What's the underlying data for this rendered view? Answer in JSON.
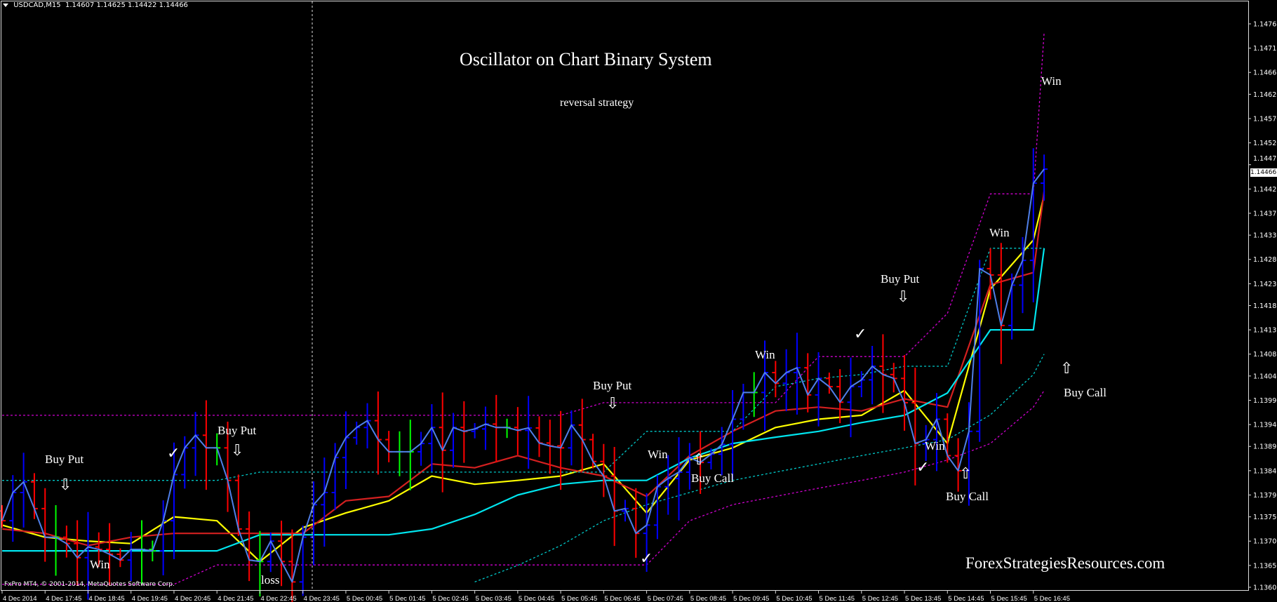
{
  "header": {
    "symbol": "USDCAD,M15",
    "ohlc": "1.14607 1.14625 1.14422 1.14466"
  },
  "title": "Oscillator on Chart Binary System",
  "subtitle": "reversal strategy",
  "watermark": "ForexStrategiesResources.com",
  "copyright": "FxPro MT4, © 2001-2014, MetaQuotes Software Corp.",
  "current_price": "1.14466",
  "annotations": [
    {
      "text": "Buy Put",
      "icon": "arrow-down-icon"
    },
    {
      "text": "Win"
    },
    {
      "text": "Buy Put",
      "icon": "arrow-down-icon"
    },
    {
      "text": "loss"
    },
    {
      "text": "Buy Put",
      "icon": "arrow-down-icon"
    },
    {
      "text": "Win"
    },
    {
      "text": "Buy Call",
      "icon": "arrow-up-icon"
    },
    {
      "text": "Win"
    },
    {
      "text": "Buy Put",
      "icon": "arrow-down-icon"
    },
    {
      "text": "Win"
    },
    {
      "text": "Buy Call",
      "icon": "arrow-up-icon"
    },
    {
      "text": "Win"
    },
    {
      "text": "Buy Call",
      "icon": "arrow-up-icon"
    },
    {
      "text": "Win"
    }
  ],
  "glyphs": {
    "check": "✓",
    "down": "⇩",
    "up": "⇧"
  },
  "chart_data": {
    "type": "ohlc",
    "symbol": "USDCAD",
    "timeframe": "M15",
    "start_time": "4 Dec 2014 16:45",
    "grid": false,
    "background": "#000000",
    "colors": {
      "bull": "#0000ff",
      "bear": "#ff0000",
      "doji": "#00ff00",
      "close_line": "#4f7fe8"
    },
    "ylim": [
      1.1359,
      1.1479
    ],
    "y_ticks": [
      "1.14765",
      "1.14715",
      "1.14665",
      "1.14620",
      "1.14570",
      "1.14520",
      "1.14475",
      "1.14425",
      "1.14375",
      "1.14330",
      "1.14280",
      "1.14230",
      "1.14185",
      "1.14135",
      "1.14085",
      "1.14040",
      "1.13990",
      "1.13940",
      "1.13895",
      "1.13845",
      "1.13795",
      "1.13750",
      "1.13700",
      "1.13650",
      "1.13605"
    ],
    "x_ticks": [
      "4 Dec 2014",
      "4 Dec 17:45",
      "4 Dec 18:45",
      "4 Dec 19:45",
      "4 Dec 20:45",
      "4 Dec 21:45",
      "4 Dec 22:45",
      "4 Dec 23:45",
      "5 Dec 00:45",
      "5 Dec 01:45",
      "5 Dec 02:45",
      "5 Dec 03:45",
      "5 Dec 04:45",
      "5 Dec 05:45",
      "5 Dec 06:45",
      "5 Dec 07:45",
      "5 Dec 08:45",
      "5 Dec 09:45",
      "5 Dec 10:45",
      "5 Dec 11:45",
      "5 Dec 12:45",
      "5 Dec 13:45",
      "5 Dec 14:45",
      "5 Dec 15:45",
      "5 Dec 16:45"
    ],
    "close": [
      1.13742,
      1.138,
      1.13822,
      1.13767,
      1.13708,
      1.13708,
      1.13695,
      1.13666,
      1.13688,
      1.13683,
      1.13673,
      1.13661,
      1.13683,
      1.13683,
      1.1368,
      1.13742,
      1.13837,
      1.13892,
      1.13918,
      1.13892,
      1.13892,
      1.13825,
      1.13725,
      1.13661,
      1.13658,
      1.137,
      1.13658,
      1.13616,
      1.13708,
      1.13775,
      1.138,
      1.13872,
      1.13913,
      1.13934,
      1.13948,
      1.13909,
      1.13884,
      1.13884,
      1.13884,
      1.13901,
      1.13934,
      1.13887,
      1.13934,
      1.13926,
      1.13931,
      1.13941,
      1.13934,
      1.13934,
      1.13928,
      1.13933,
      1.13902,
      1.13896,
      1.13892,
      1.13939,
      1.13909,
      1.13864,
      1.13834,
      1.13762,
      1.13767,
      1.13716,
      1.13733,
      1.13812,
      1.13829,
      1.13842,
      1.13872,
      1.13862,
      1.13879,
      1.13899,
      1.13951,
      1.14006,
      1.14006,
      1.14047,
      1.14025,
      1.14047,
      1.14057,
      1.14001,
      1.14035,
      1.14018,
      1.13986,
      1.14018,
      1.14032,
      1.1406,
      1.14043,
      1.14035,
      1.13985,
      1.13901,
      1.13909,
      1.13951,
      1.13876,
      1.13845,
      1.13926,
      1.14261,
      1.14248,
      1.14144,
      1.14227,
      1.14278,
      1.14437,
      1.14466
    ],
    "indicators": [
      {
        "color": "#ffff00",
        "style": "solid",
        "hourly": [
          1.13733,
          1.13708,
          1.137,
          1.13695,
          1.1375,
          1.13742,
          1.13658,
          1.13728,
          1.13758,
          1.13783,
          1.13834,
          1.13817,
          1.13825,
          1.13834,
          1.13859,
          1.13758,
          1.13867,
          1.13892,
          1.13934,
          1.13951,
          1.13959,
          1.1401,
          1.13901,
          1.14219,
          1.1432
        ],
        "last": 1.14412
      },
      {
        "color": "#d42020",
        "style": "solid",
        "hourly": [
          1.13725,
          1.13716,
          1.13691,
          1.13708,
          1.13716,
          1.13716,
          1.13716,
          1.13716,
          1.13783,
          1.13792,
          1.13859,
          1.13851,
          1.13876,
          1.13851,
          1.13834,
          1.13792,
          1.13876,
          1.13926,
          1.13968,
          1.13976,
          1.13968,
          1.13993,
          1.13976,
          1.14228,
          1.14253
        ],
        "last": 1.1442
      },
      {
        "color": "#00e5ee",
        "style": "solid",
        "hourly": [
          1.1368,
          1.1368,
          1.1368,
          1.1368,
          1.1368,
          1.1368,
          1.13713,
          1.13713,
          1.13713,
          1.13713,
          1.13725,
          1.13755,
          1.13795,
          1.13817,
          1.13825,
          1.13825,
          1.13871,
          1.13901,
          1.13914,
          1.13926,
          1.13944,
          1.13959,
          1.14005,
          1.14135,
          1.14135
        ],
        "last": 1.14303
      },
      {
        "color": "#d000d0",
        "style": "dotted",
        "hourly": [
          1.13959,
          1.13959,
          1.13959,
          1.13959,
          1.13959,
          1.13959,
          1.13959,
          1.13959,
          1.13959,
          1.13959,
          1.13959,
          1.13959,
          1.13959,
          1.13959,
          1.13985,
          1.13985,
          1.13985,
          1.13985,
          1.13985,
          1.1408,
          1.1408,
          1.1408,
          1.14169,
          1.14415,
          1.14415
        ],
        "last": 1.14747
      },
      {
        "color": "#d000d0",
        "style": "dotted",
        "hourly": [
          1.13611,
          1.13611,
          1.13611,
          1.13611,
          1.13611,
          1.13651,
          1.13651,
          1.13651,
          1.13651,
          1.13651,
          1.13651,
          1.13651,
          1.13651,
          1.13651,
          1.13651,
          1.13651,
          1.13742,
          1.13775,
          1.13792,
          1.13809,
          1.13825,
          1.13842,
          1.13867,
          1.13901,
          1.13976
        ],
        "last": 1.1401
      },
      {
        "color": "#00c8c8",
        "style": "dotted",
        "hourly": [
          1.13825,
          1.13825,
          1.13825,
          1.13825,
          1.13825,
          1.13825,
          1.13842,
          1.13842,
          1.13842,
          1.13842,
          1.13842,
          1.13842,
          1.13842,
          1.13842,
          1.13842,
          1.13926,
          1.13926,
          1.13926,
          1.14018,
          1.14035,
          1.14043,
          1.1406,
          1.1406,
          1.14303,
          1.14303
        ],
        "last": 1.14303
      },
      {
        "color": "#00c8c8",
        "style": "dotted",
        "hourly": [
          null,
          null,
          null,
          null,
          null,
          null,
          null,
          null,
          null,
          null,
          null,
          1.13616,
          1.1365,
          1.13691,
          1.13742,
          1.13775,
          1.138,
          1.13825,
          1.13842,
          1.13859,
          1.13876,
          1.13892,
          1.13909,
          1.1396,
          1.14043
        ],
        "last": 1.14085
      }
    ]
  }
}
